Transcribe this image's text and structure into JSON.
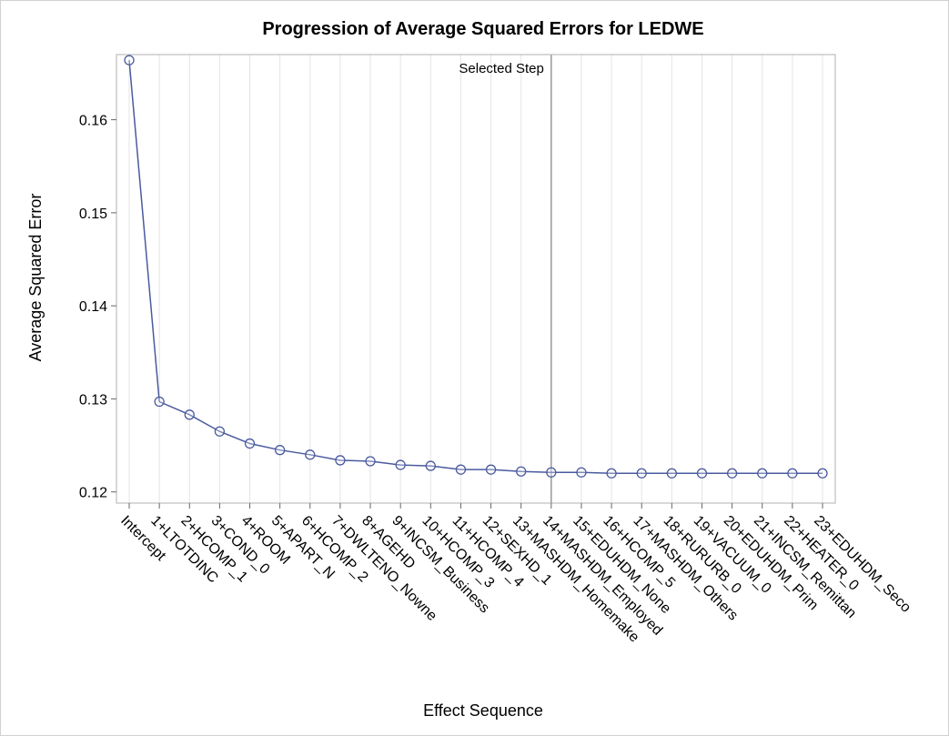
{
  "chart_data": {
    "type": "line",
    "title": "Progression of Average Squared Errors for LEDWE",
    "x_label": "Effect Sequence",
    "y_label": "Average Squared Error",
    "categories": [
      "Intercept",
      "1+LTOTDINC",
      "2+HCOMP_1",
      "3+COND_0",
      "4+ROOM",
      "5+APART_N",
      "6+HCOMP_2",
      "7+DWLTENO_Nowne",
      "8+AGEHD",
      "9+INCSM_Business",
      "10+HCOMP_3",
      "11+HCOMP_4",
      "12+SEXHD_1",
      "13+MASHDM_Homemake",
      "14+MASHDM_Employed",
      "15+EDUHDM_None",
      "16+HCOMP_5",
      "17+MASHDM_Others",
      "18+RURURB_0",
      "19+VACUUM_0",
      "20+EDUHDM_Prim",
      "21+INCSM_Remittan",
      "22+HEATER_0",
      "23+EDUHDM_Seco"
    ],
    "series": [
      {
        "name": "Average Squared Error",
        "color": "#4a5a9e",
        "values": [
          0.1664,
          0.1297,
          0.1283,
          0.1265,
          0.1252,
          0.1245,
          0.124,
          0.1234,
          0.1233,
          0.1229,
          0.1228,
          0.1224,
          0.1224,
          0.1222,
          0.1221,
          0.1221,
          0.122,
          0.122,
          0.122,
          0.122,
          0.122,
          0.122,
          0.122,
          0.122
        ]
      }
    ],
    "reference_line": {
      "label": "Selected Step",
      "category": "14+MASHDM_Employed"
    },
    "ylim": [
      0.1188,
      0.167
    ],
    "yticks": [
      0.12,
      0.13,
      0.14,
      0.15,
      0.16
    ],
    "grid": true
  }
}
